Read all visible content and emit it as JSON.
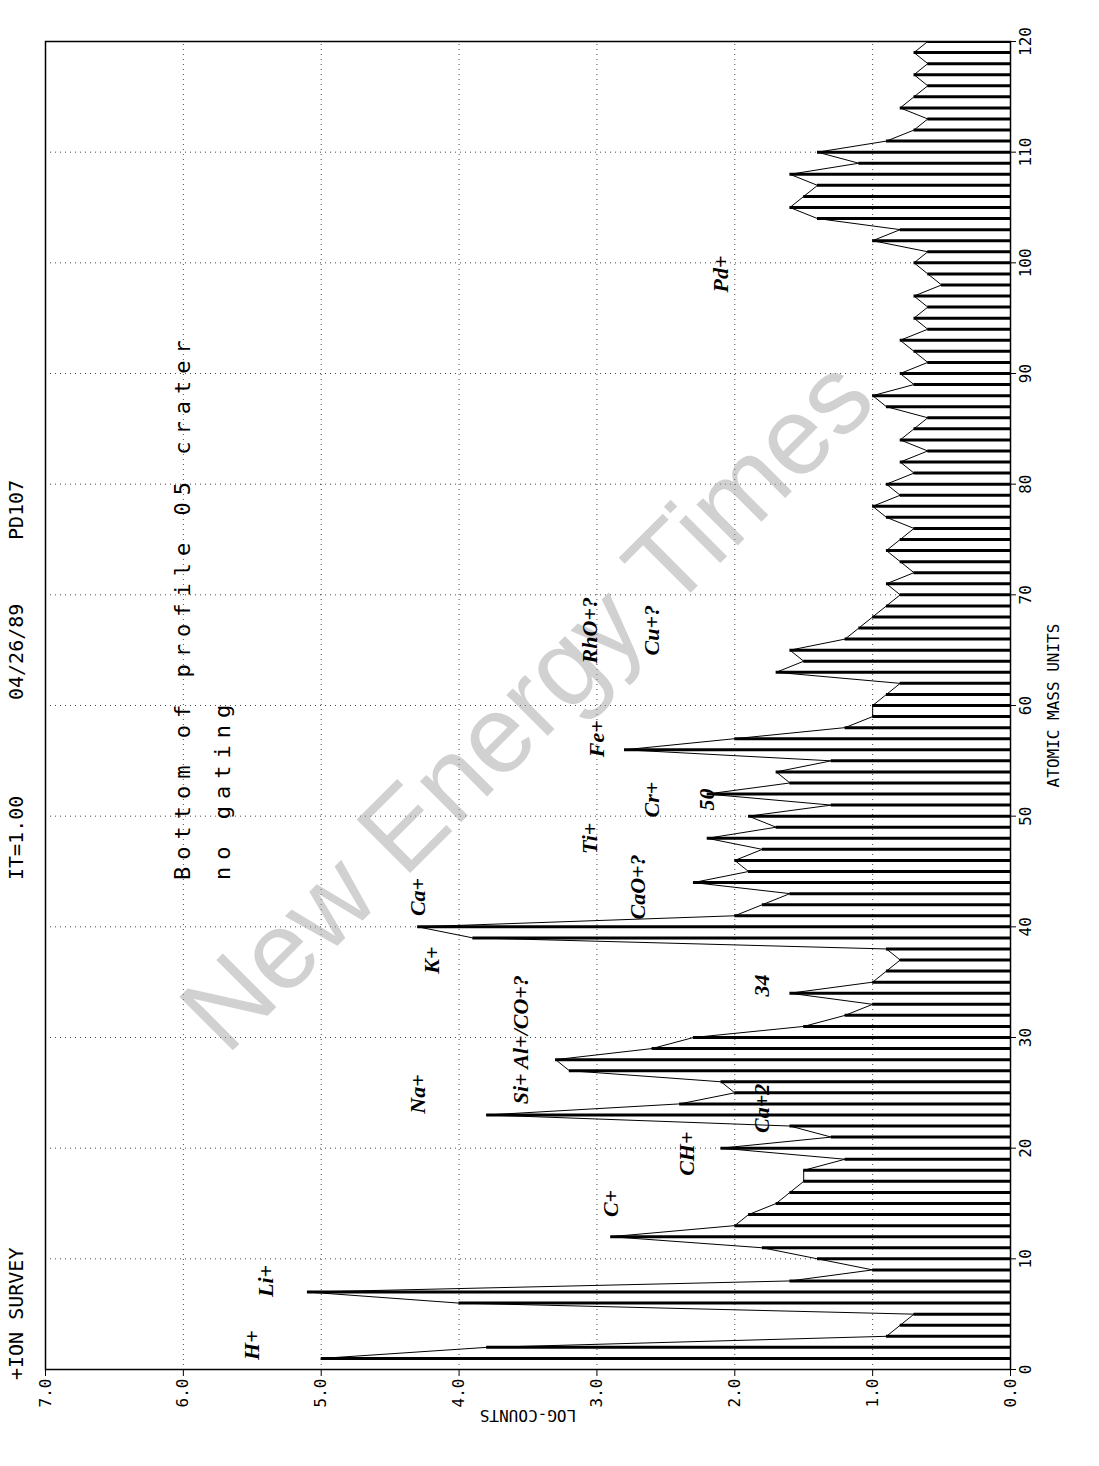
{
  "chart_data": {
    "type": "bar",
    "title": "+ION SURVEY",
    "header_fields": [
      "IT=1.00",
      "04/26/89",
      "PD107"
    ],
    "subtitle": [
      "Bottom of profile 05 crater",
      "no gating"
    ],
    "x_label": "ATOMIC MASS UNITS",
    "y_label": "LOG-COUNTS",
    "watermark": "New Energy Times",
    "color": "#000000",
    "grid": true,
    "xlim": [
      0,
      120
    ],
    "ylim": [
      0,
      7
    ],
    "xticks": [
      0,
      10,
      20,
      30,
      40,
      50,
      60,
      70,
      80,
      90,
      100,
      110,
      120
    ],
    "yticks": [
      0,
      1,
      2,
      3,
      4,
      5,
      6,
      7
    ],
    "x": [
      1,
      2,
      3,
      4,
      5,
      6,
      7,
      8,
      9,
      10,
      11,
      12,
      13,
      14,
      15,
      16,
      17,
      18,
      19,
      20,
      21,
      22,
      23,
      24,
      25,
      26,
      27,
      28,
      29,
      30,
      31,
      32,
      33,
      34,
      35,
      36,
      37,
      38,
      39,
      40,
      41,
      42,
      43,
      44,
      45,
      46,
      47,
      48,
      49,
      50,
      51,
      52,
      53,
      54,
      55,
      56,
      57,
      58,
      59,
      60,
      61,
      62,
      63,
      64,
      65,
      66,
      67,
      68,
      69,
      70,
      71,
      72,
      73,
      74,
      75,
      76,
      77,
      78,
      79,
      80,
      81,
      82,
      83,
      84,
      85,
      86,
      87,
      88,
      89,
      90,
      91,
      92,
      93,
      94,
      95,
      96,
      97,
      98,
      99,
      100,
      101,
      102,
      103,
      104,
      105,
      106,
      107,
      108,
      109,
      110,
      111,
      112,
      113,
      114,
      115,
      116,
      117,
      118,
      119,
      120
    ],
    "values": [
      5.0,
      3.8,
      0.9,
      0.8,
      0.7,
      4.0,
      5.1,
      1.6,
      1.0,
      1.4,
      1.8,
      2.9,
      2.0,
      1.9,
      1.7,
      1.6,
      1.5,
      1.5,
      1.2,
      2.1,
      1.3,
      1.6,
      3.8,
      2.4,
      2.0,
      2.1,
      3.2,
      3.3,
      2.6,
      2.3,
      1.5,
      1.2,
      1.0,
      1.6,
      1.0,
      0.9,
      0.8,
      0.9,
      3.9,
      4.3,
      2.0,
      1.8,
      1.6,
      2.3,
      1.9,
      2.0,
      1.8,
      2.2,
      1.7,
      1.9,
      1.3,
      2.2,
      1.6,
      1.7,
      1.3,
      2.8,
      2.0,
      1.2,
      1.0,
      1.0,
      0.9,
      0.8,
      1.7,
      1.5,
      1.6,
      1.2,
      1.1,
      1.0,
      0.9,
      0.8,
      0.9,
      0.7,
      0.8,
      0.9,
      0.8,
      0.7,
      0.9,
      1.0,
      0.8,
      0.9,
      0.7,
      0.8,
      0.6,
      0.8,
      0.7,
      0.6,
      0.9,
      1.0,
      0.7,
      0.8,
      0.6,
      0.7,
      0.8,
      0.6,
      0.7,
      0.6,
      0.7,
      0.5,
      0.6,
      0.7,
      0.6,
      1.0,
      0.8,
      1.4,
      1.6,
      1.5,
      1.4,
      1.6,
      1.1,
      1.4,
      0.9,
      0.7,
      0.6,
      0.8,
      0.7,
      0.6,
      0.7,
      0.6,
      0.7,
      0.6
    ],
    "annotations": [
      {
        "text": "H+",
        "x": 2.2,
        "y": 5.5
      },
      {
        "text": "Li+",
        "x": 8,
        "y": 5.4
      },
      {
        "text": "C+",
        "x": 15,
        "y": 2.9
      },
      {
        "text": "CH+",
        "x": 19.5,
        "y": 2.35
      },
      {
        "text": "Ca+2",
        "x": 23.6,
        "y": 1.8
      },
      {
        "text": "Na+",
        "x": 24.9,
        "y": 4.3
      },
      {
        "text": "Si+ Al+/CO+?",
        "x": 29.8,
        "y": 3.55
      },
      {
        "text": "34",
        "x": 34.7,
        "y": 1.8
      },
      {
        "text": "K+",
        "x": 37,
        "y": 4.2
      },
      {
        "text": "Ca+",
        "x": 42.7,
        "y": 4.3
      },
      {
        "text": "CaO+?",
        "x": 43.6,
        "y": 2.7
      },
      {
        "text": "Ti+",
        "x": 48,
        "y": 3.05
      },
      {
        "text": "Cr+",
        "x": 51.5,
        "y": 2.6
      },
      {
        "text": "50",
        "x": 51.5,
        "y": 2.2
      },
      {
        "text": "Fe+",
        "x": 57,
        "y": 3.0
      },
      {
        "text": "RhO+?",
        "x": 66.8,
        "y": 3.05
      },
      {
        "text": "Cu+?",
        "x": 66.8,
        "y": 2.6
      },
      {
        "text": "Pd+",
        "x": 99,
        "y": 2.1
      }
    ]
  }
}
